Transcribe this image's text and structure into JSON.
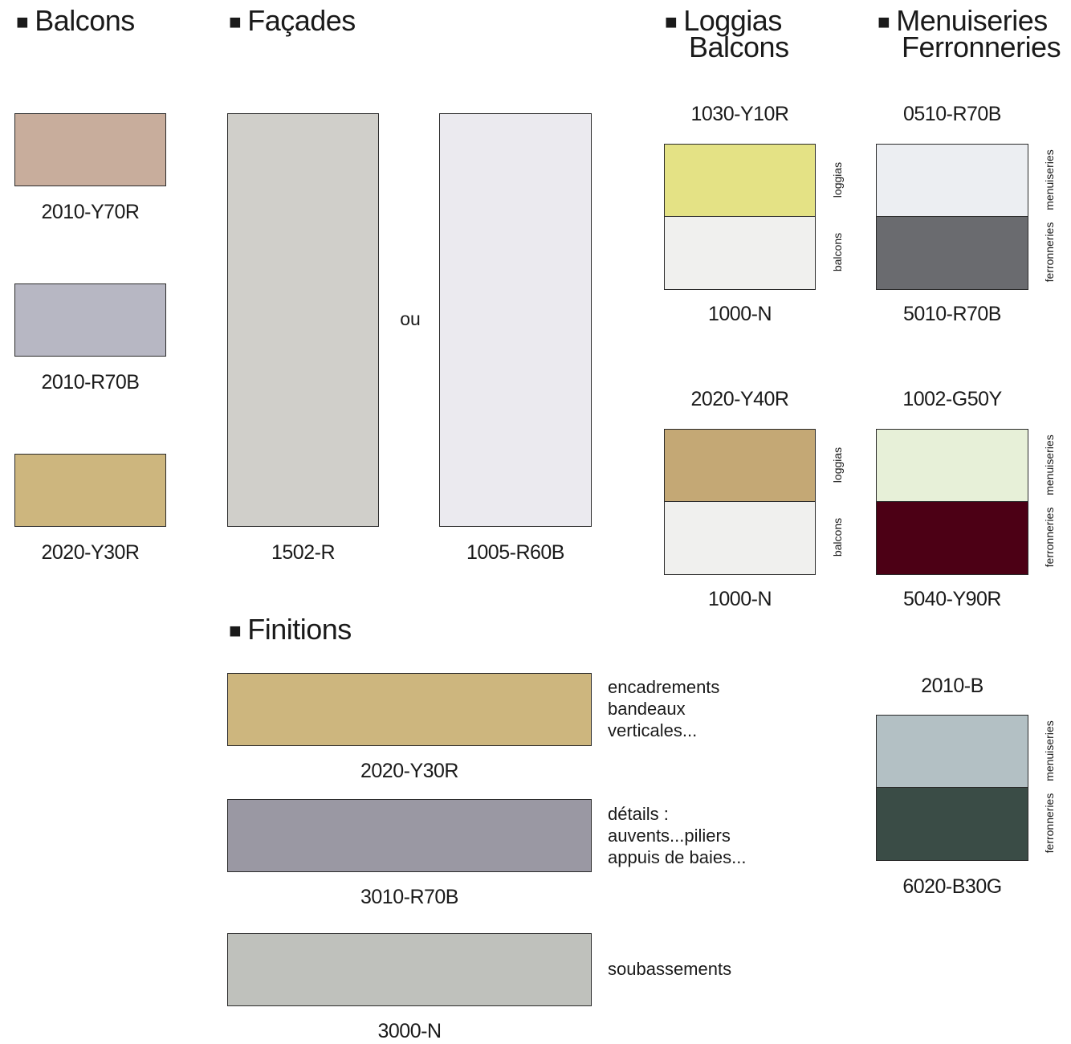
{
  "headings": {
    "balcons": "Balcons",
    "facades": "Façades",
    "loggias_line1": "Loggias",
    "loggias_line2": "Balcons",
    "menuiseries_line1": "Menuiseries",
    "menuiseries_line2": "Ferronneries",
    "finitions": "Finitions",
    "bullet": "■"
  },
  "balcons": [
    {
      "code": "2010-Y70R",
      "color": "#c8ad9c"
    },
    {
      "code": "2010-R70B",
      "color": "#b7b7c3"
    },
    {
      "code": "2020-Y30R",
      "color": "#cdb67e"
    }
  ],
  "facades": {
    "or_word": "ou",
    "options": [
      {
        "code": "1502-R",
        "color": "#d0cfca"
      },
      {
        "code": "1005-R60B",
        "color": "#ebeaef"
      }
    ]
  },
  "loggias": [
    {
      "top_code": "1030-Y10R",
      "top_color": "#e4e285",
      "top_label": "loggias",
      "bottom_code": "1000-N",
      "bottom_color": "#f0f0ee",
      "bottom_label": "balcons"
    },
    {
      "top_code": "2020-Y40R",
      "top_color": "#c4a875",
      "top_label": "loggias",
      "bottom_code": "1000-N",
      "bottom_color": "#f0f0ee",
      "bottom_label": "balcons"
    }
  ],
  "menuiseries": [
    {
      "top_code": "0510-R70B",
      "top_color": "#eceef2",
      "top_label": "menuiseries",
      "bottom_code": "5010-R70B",
      "bottom_color": "#6a6b6f",
      "bottom_label": "ferronneries"
    },
    {
      "top_code": "1002-G50Y",
      "top_color": "#e7f0d8",
      "top_label": "menuiseries",
      "bottom_code": "5040-Y90R",
      "bottom_color": "#4c0015",
      "bottom_label": "ferronneries"
    },
    {
      "top_code": "2010-B",
      "top_color": "#b3c0c4",
      "top_label": "menuiseries",
      "bottom_code": "6020-B30G",
      "bottom_color": "#3a4c46",
      "bottom_label": "ferronneries"
    }
  ],
  "finitions": [
    {
      "code": "2020-Y30R",
      "color": "#cdb67e",
      "notes": [
        "encadrements",
        "bandeaux",
        "verticales..."
      ]
    },
    {
      "code": "3010-R70B",
      "color": "#9a98a3",
      "notes": [
        "détails :",
        "auvents...piliers",
        "appuis de baies..."
      ]
    },
    {
      "code": "3000-N",
      "color": "#bfc1bc",
      "notes": [
        "soubassements"
      ]
    }
  ]
}
